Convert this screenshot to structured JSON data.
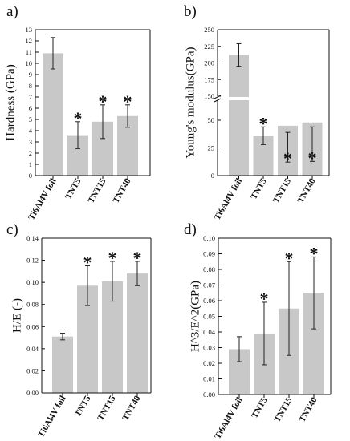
{
  "colors": {
    "bar": "#c8c8c8",
    "axis": "#111111",
    "err": "#222222"
  },
  "chart_data": [
    {
      "panel_label": "a)",
      "type": "bar",
      "ylabel": "Hardness (GPa)",
      "ylim": [
        0,
        13
      ],
      "yticks": [
        "0",
        "1",
        "2",
        "3",
        "4",
        "5",
        "6",
        "7",
        "8",
        "9",
        "10",
        "11",
        "12",
        "13"
      ],
      "categories": [
        "Ti6Al4V foil",
        "TNT5",
        "TNT15",
        "TNT40"
      ],
      "values": [
        10.9,
        3.6,
        4.8,
        5.3
      ],
      "errors": [
        1.4,
        1.2,
        1.5,
        1.0
      ],
      "marks": [
        "",
        "*",
        "*",
        "*"
      ]
    },
    {
      "panel_label": "b)",
      "type": "bar",
      "ylabel": "Young's modulus(GPa)",
      "broken_axis": true,
      "ylim_lower": [
        0,
        50
      ],
      "ylim_upper": [
        150,
        250
      ],
      "yticks_lower": [
        "0",
        "25",
        "50"
      ],
      "yticks_upper": [
        "150",
        "175",
        "200",
        "225",
        "250"
      ],
      "categories": [
        "Ti6Al4V foil",
        "TNT5",
        "TNT15",
        "TNT40"
      ],
      "values": [
        212,
        36,
        45,
        48
      ],
      "errors": [
        17,
        8,
        6,
        4
      ],
      "marks": [
        "",
        "*",
        "*",
        "*"
      ]
    },
    {
      "panel_label": "c)",
      "type": "bar",
      "ylabel": "H/E (-)",
      "ylim": [
        0,
        0.14
      ],
      "yticks": [
        "0.00",
        "0.02",
        "0.04",
        "0.06",
        "0.08",
        "0.10",
        "0.12",
        "0.14"
      ],
      "categories": [
        "Ti6Al4V foil",
        "TNT5",
        "TNT15",
        "TNT40"
      ],
      "values": [
        0.051,
        0.097,
        0.101,
        0.108
      ],
      "errors": [
        0.003,
        0.018,
        0.018,
        0.011
      ],
      "marks": [
        "",
        "*",
        "*",
        "*"
      ]
    },
    {
      "panel_label": "d)",
      "type": "bar",
      "ylabel": "H^3/E^2(GPa)",
      "ylim": [
        0,
        0.1
      ],
      "yticks": [
        "0.00",
        "0.01",
        "0.02",
        "0.03",
        "0.04",
        "0.05",
        "0.06",
        "0.07",
        "0.08",
        "0.09",
        "0.10"
      ],
      "categories": [
        "Ti6Al4V foil",
        "TNT5",
        "TNT15",
        "TNT40"
      ],
      "values": [
        0.029,
        0.039,
        0.055,
        0.065
      ],
      "errors": [
        0.008,
        0.02,
        0.03,
        0.023
      ],
      "marks": [
        "",
        "*",
        "*",
        "*"
      ]
    }
  ]
}
